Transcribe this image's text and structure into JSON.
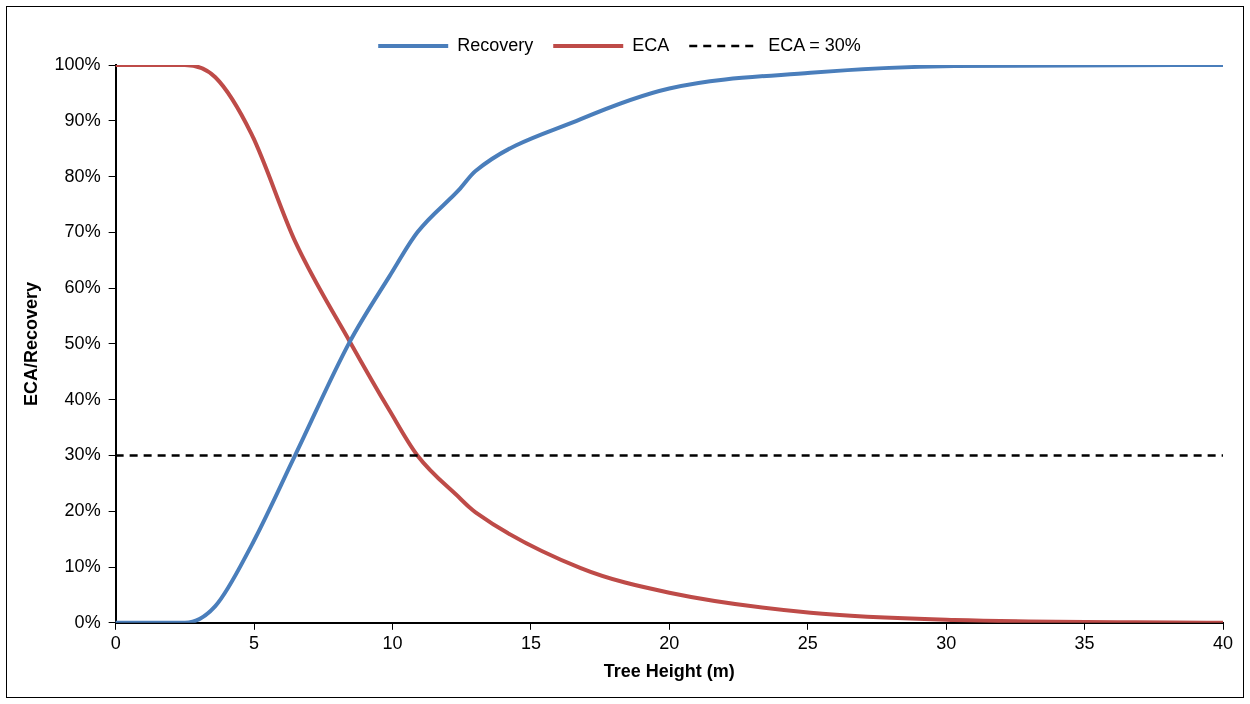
{
  "chart_data": {
    "type": "line",
    "xlabel": "Tree Height (m)",
    "ylabel": "ECA/Recovery",
    "series": [
      {
        "name": "Recovery",
        "color": "#4a7ebb",
        "x": [
          0,
          2.5,
          3.6,
          4.9,
          6.5,
          8.46,
          9.9,
          10.9,
          12.4,
          13,
          16.8,
          20,
          25.1,
          30.3,
          40
        ],
        "values": [
          0,
          0,
          3,
          13.8,
          30.2,
          50.4,
          62.2,
          70,
          77.6,
          81,
          90.3,
          95.8,
          98.6,
          99.8,
          100
        ]
      },
      {
        "name": "ECA",
        "color": "#be4b48",
        "x": [
          0,
          2.5,
          3.6,
          4.9,
          6.5,
          8.46,
          9.9,
          10.9,
          12.4,
          13,
          16.8,
          20,
          25.1,
          30.3,
          40
        ],
        "values": [
          100,
          100,
          97.8,
          87.7,
          68.2,
          50.4,
          38,
          30,
          22.5,
          19.8,
          9.8,
          5.4,
          1.8,
          0.5,
          0
        ]
      }
    ],
    "ref_lines": [
      {
        "axis": "y",
        "value": 30,
        "label": "ECA = 30%",
        "color": "#000000",
        "line_style": "dashed"
      }
    ],
    "xlim": [
      0,
      40
    ],
    "xticks": [
      0,
      5,
      10,
      15,
      20,
      25,
      30,
      35,
      40
    ],
    "ylim": [
      0,
      100
    ],
    "yticks": [
      {
        "value": 0,
        "label": "0%"
      },
      {
        "value": 10,
        "label": "10%"
      },
      {
        "value": 20,
        "label": "20%"
      },
      {
        "value": 30,
        "label": "30%"
      },
      {
        "value": 40,
        "label": "40%"
      },
      {
        "value": 50,
        "label": "50%"
      },
      {
        "value": 60,
        "label": "60%"
      },
      {
        "value": 70,
        "label": "70%"
      },
      {
        "value": 80,
        "label": "80%"
      },
      {
        "value": 90,
        "label": "90%"
      },
      {
        "value": 100,
        "label": "100%"
      }
    ],
    "grid": false,
    "legend": "top",
    "marker": "none",
    "line_style": "solid"
  }
}
